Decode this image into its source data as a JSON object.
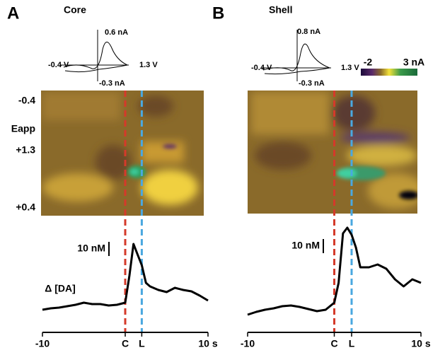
{
  "heatmap_labels": [
    "-0.4",
    "Eapp",
    "+1.3",
    "+0.4"
  ],
  "colorbar": {
    "ticks": [
      -2,
      {
        "value": 3,
        "label": "3 nA"
      }
    ]
  },
  "panels": [
    {
      "letter": "A",
      "title": "Core",
      "cv": {
        "top_label": "0.6 nA",
        "bottom_label": "-0.3 nA",
        "left_label": "-0.4 V",
        "right_label": "1.3 V"
      },
      "trace": {
        "type": "line",
        "y_label": "Δ [DA]",
        "scale_bar": {
          "value": 10,
          "label": "10 nM"
        },
        "x": [
          -10,
          -9,
          -8,
          -7,
          -6,
          -5,
          -4,
          -3,
          -2,
          -1,
          0,
          0.5,
          1,
          1.5,
          2,
          2.5,
          3,
          4,
          5,
          6,
          7,
          8,
          9,
          10
        ],
        "values": [
          0,
          1,
          1.5,
          2.5,
          3.5,
          5,
          4,
          4,
          3,
          3.5,
          5,
          24,
          46.5,
          39,
          31.5,
          19,
          16.5,
          14,
          12.5,
          15.5,
          14,
          13,
          10,
          6.5
        ],
        "xlim": [
          -10,
          10
        ],
        "xticks": [
          -10,
          {
            "value": 0,
            "label": "C"
          },
          {
            "value": 2,
            "label": "L"
          },
          {
            "value": 10,
            "label": "10 s"
          }
        ]
      }
    },
    {
      "letter": "B",
      "title": "Shell",
      "cv": {
        "top_label": "0.8 nA",
        "bottom_label": "-0.3 nA",
        "left_label": "-0.4 V",
        "right_label": "1.3 V"
      },
      "trace": {
        "type": "line",
        "scale_bar": {
          "value": 10,
          "label": "10 nM"
        },
        "x": [
          -10,
          -9,
          -8,
          -7,
          -6,
          -5,
          -4,
          -3,
          -2,
          -1,
          0,
          0.5,
          1,
          1.5,
          2,
          2.5,
          3,
          4,
          5,
          6,
          7,
          8,
          9,
          10
        ],
        "values": [
          0,
          2,
          3.5,
          4.5,
          6,
          6.5,
          5.5,
          4,
          2.5,
          3.5,
          8.5,
          22.5,
          57.5,
          61.5,
          56.5,
          47.5,
          33.5,
          33.5,
          35.5,
          32.5,
          25,
          20,
          25,
          22.5
        ],
        "xlim": [
          -10,
          10
        ],
        "xticks": [
          -10,
          {
            "value": 0,
            "label": "C"
          },
          {
            "value": 2,
            "label": "L"
          },
          {
            "value": 10,
            "label": "10 s"
          }
        ]
      }
    }
  ]
}
